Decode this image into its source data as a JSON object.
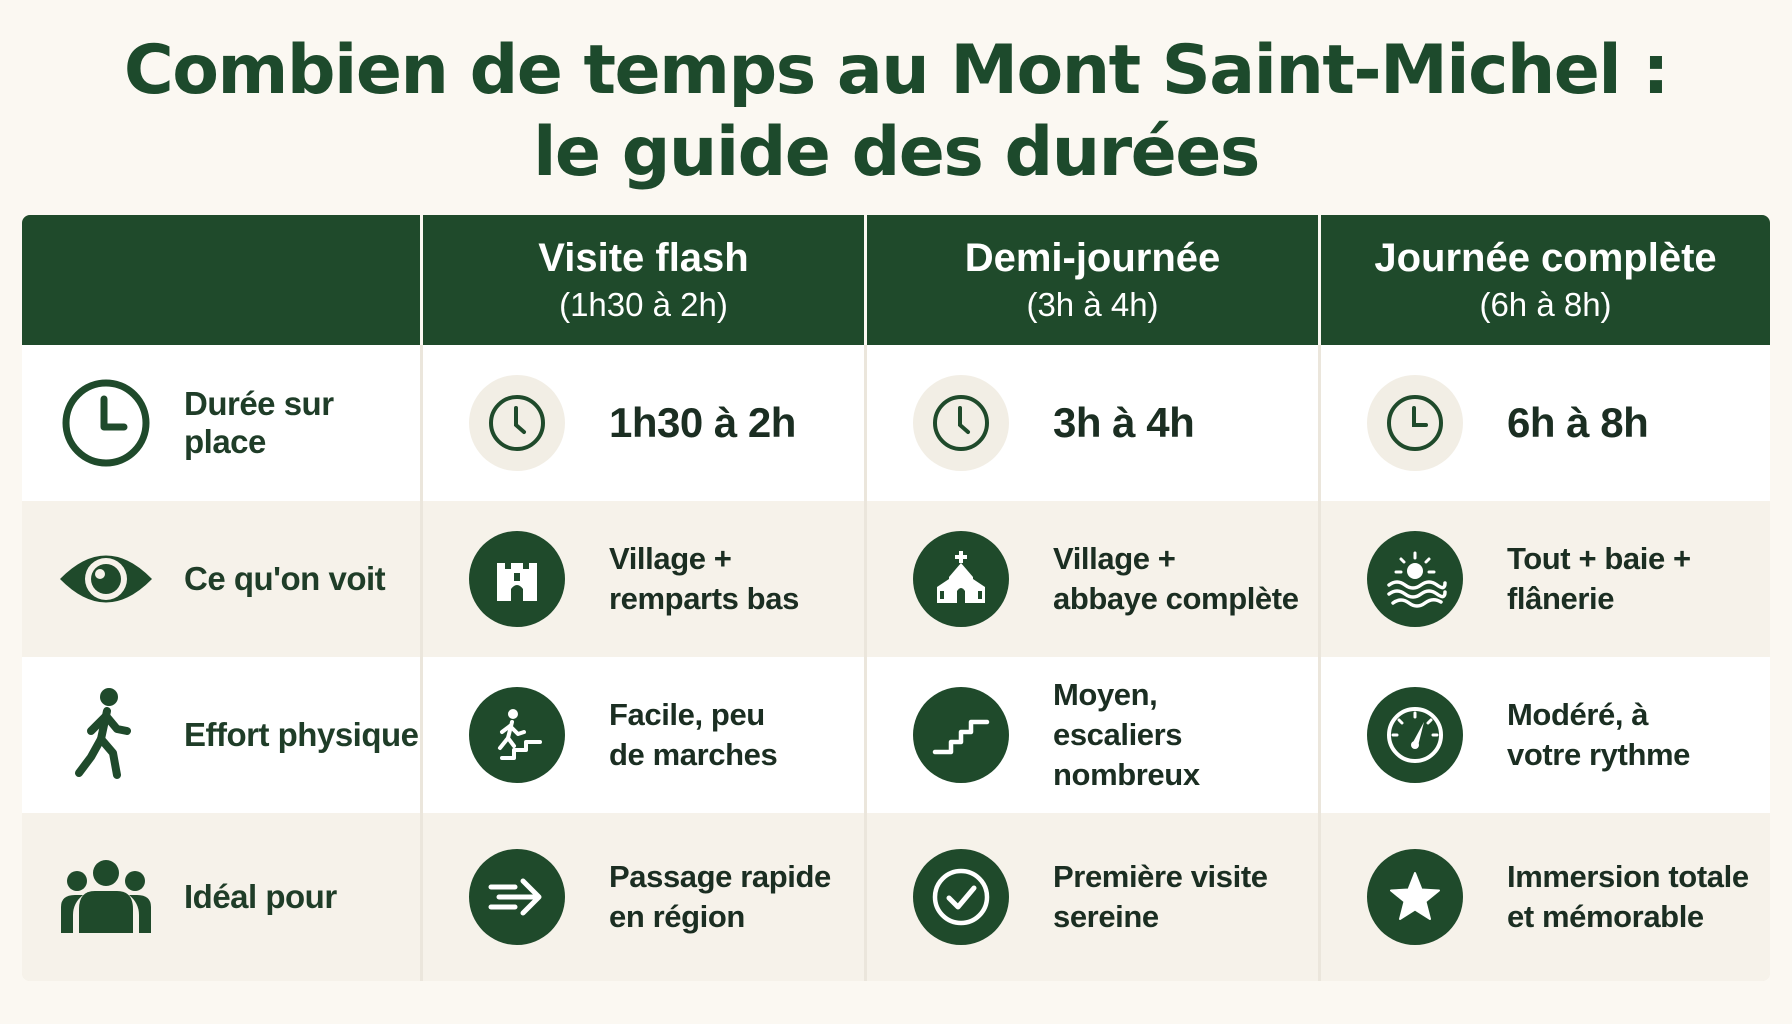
{
  "title": {
    "line1": "Combien de temps au Mont Saint-Michel :",
    "line2": "le guide des durées"
  },
  "header": {
    "columns": [
      {
        "name": "Visite flash",
        "range": "(1h30 à 2h)"
      },
      {
        "name": "Demi-journée",
        "range": "(3h à 4h)"
      },
      {
        "name": "Journée complète",
        "range": "(6h à 8h)"
      }
    ]
  },
  "rows": [
    {
      "label": "Durée sur place",
      "icon": "clock-icon",
      "cells": [
        {
          "text": "1h30 à 2h",
          "icon": "clock-icon"
        },
        {
          "text": "3h à 4h",
          "icon": "clock-icon"
        },
        {
          "text": "6h à 8h",
          "icon": "clock-icon"
        }
      ]
    },
    {
      "label": "Ce qu'on voit",
      "icon": "eye-icon",
      "cells": [
        {
          "text": "Village +\nremparts bas",
          "icon": "castle-tower-icon"
        },
        {
          "text": "Village +\nabbaye complète",
          "icon": "church-icon"
        },
        {
          "text": "Tout + baie +\nflânerie",
          "icon": "sun-waves-icon"
        }
      ]
    },
    {
      "label": "Effort physique",
      "icon": "walking-person-icon",
      "cells": [
        {
          "text": "Facile, peu\nde marches",
          "icon": "person-stairs-icon"
        },
        {
          "text": "Moyen,\nescaliers nombreux",
          "icon": "stairs-icon"
        },
        {
          "text": "Modéré, à\nvotre rythme",
          "icon": "gauge-icon"
        }
      ]
    },
    {
      "label": "Idéal pour",
      "icon": "group-icon",
      "cells": [
        {
          "text": "Passage rapide\nen région",
          "icon": "fast-arrow-icon"
        },
        {
          "text": "Première visite\nsereine",
          "icon": "check-circle-icon"
        },
        {
          "text": "Immersion totale\net mémorable",
          "icon": "star-icon"
        }
      ]
    }
  ],
  "colors": {
    "primary": "#1f4a2b",
    "background": "#fbf8f2",
    "row_alt": "#f6f2ea"
  }
}
